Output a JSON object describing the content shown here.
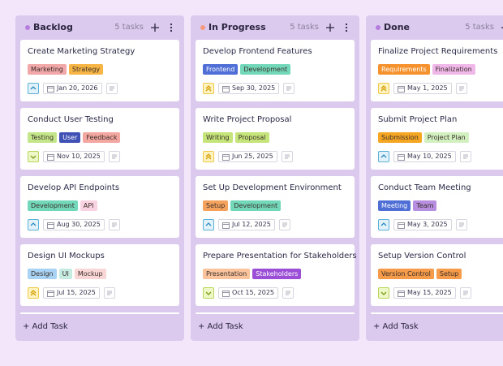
{
  "columns": [
    {
      "title": "Backlog",
      "count": "5 tasks",
      "add": "+ Add Task",
      "dot": "#b57de0",
      "cards": [
        {
          "title": "Create Marketing Strategy",
          "tags": [
            {
              "text": "Marketing",
              "color": "#f2a7a9"
            },
            {
              "text": "Strategy",
              "color": "#f6b545"
            }
          ],
          "date": "Jan 20, 2026"
        },
        {
          "title": "Conduct User Testing",
          "tags": [
            {
              "text": "Testing",
              "color": "#c4e68a"
            },
            {
              "text": "User",
              "color": "#3f51b5"
            },
            {
              "text": "Feedback",
              "color": "#f4a6a0"
            }
          ],
          "date": "Nov 10, 2025"
        },
        {
          "title": "Develop API Endpoints",
          "tags": [
            {
              "text": "Development",
              "color": "#72d8b9"
            },
            {
              "text": "API",
              "color": "#fad3e2"
            }
          ],
          "date": "Aug 30, 2025"
        },
        {
          "title": "Design UI Mockups",
          "tags": [
            {
              "text": "Design",
              "color": "#a9d3f5"
            },
            {
              "text": "UI",
              "color": "#c6ece2"
            },
            {
              "text": "Mockup",
              "color": "#fad7d7"
            }
          ],
          "date": "Jul 15, 2025"
        }
      ]
    },
    {
      "title": "In Progress",
      "count": "5 tasks",
      "add": "+ Add Task",
      "dot": "#f59a7c",
      "cards": [
        {
          "title": "Develop Frontend Features",
          "tags": [
            {
              "text": "Frontend",
              "color": "#4f6fd6"
            },
            {
              "text": "Development",
              "color": "#72d8b9"
            }
          ],
          "date": "Sep 30, 2025"
        },
        {
          "title": "Write Project Proposal",
          "tags": [
            {
              "text": "Writing",
              "color": "#c5e47a"
            },
            {
              "text": "Proposal",
              "color": "#c5e47a"
            }
          ],
          "date": "Jun 25, 2025"
        },
        {
          "title": "Set Up Development Environment",
          "tags": [
            {
              "text": "Setup",
              "color": "#f5a25c"
            },
            {
              "text": "Development",
              "color": "#72d8b9"
            }
          ],
          "date": "Jul 12, 2025"
        },
        {
          "title": "Prepare Presentation for Stakeholders",
          "tags": [
            {
              "text": "Presentation",
              "color": "#fbc49c"
            },
            {
              "text": "Stakeholders",
              "color": "#9b4fd6"
            }
          ],
          "date": "Oct 15, 2025"
        }
      ]
    },
    {
      "title": "Done",
      "count": "5 tasks",
      "add": "+ Add Task",
      "dot": "#b57de0",
      "cards": [
        {
          "title": "Finalize Project Requirements",
          "tags": [
            {
              "text": "Requirements",
              "color": "#f5922e"
            },
            {
              "text": "Finalization",
              "color": "#f0b8e8"
            }
          ],
          "date": "May 1, 2025"
        },
        {
          "title": "Submit Project Plan",
          "tags": [
            {
              "text": "Submission",
              "color": "#f5a623"
            },
            {
              "text": "Project Plan",
              "color": "#d2f0c0"
            }
          ],
          "date": "May 10, 2025"
        },
        {
          "title": "Conduct Team Meeting",
          "tags": [
            {
              "text": "Meeting",
              "color": "#4f6fd6"
            },
            {
              "text": "Team",
              "color": "#b88ee0"
            }
          ],
          "date": "May 3, 2025"
        },
        {
          "title": "Setup Version Control",
          "tags": [
            {
              "text": "Version Control",
              "color": "#f59b4a"
            },
            {
              "text": "Setup",
              "color": "#f59b4a"
            }
          ],
          "date": "May 15, 2025"
        }
      ]
    }
  ]
}
